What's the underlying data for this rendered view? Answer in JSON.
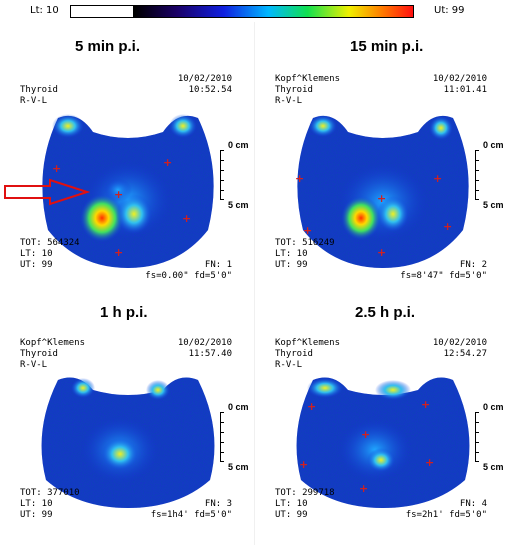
{
  "colorbar": {
    "lt_label": "Lt: 10",
    "ut_label": "Ut: 99"
  },
  "scale": {
    "top": "0 cm",
    "bottom": "5 cm"
  },
  "panels": [
    {
      "title": "5 min p.i.",
      "name": "",
      "organ": "Thyroid",
      "orient": "R-V-L",
      "date": "10/02/2010",
      "time": "10:52.54",
      "tot": "TOT: 564324",
      "lt": "LT: 10",
      "ut": "UT: 99",
      "fn": "FN: 1",
      "fs": "fs=0.00\" fd=5'0\""
    },
    {
      "title": "15 min p.i.",
      "name": "Kopf^Klemens",
      "organ": "Thyroid",
      "orient": "R-V-L",
      "date": "10/02/2010",
      "time": "11:01.41",
      "tot": "TOT: 516249",
      "lt": "LT: 10",
      "ut": "UT: 99",
      "fn": "FN: 2",
      "fs": "fs=8'47\" fd=5'0\""
    },
    {
      "title": "1 h p.i.",
      "name": "Kopf^Klemens",
      "organ": "Thyroid",
      "orient": "R-V-L",
      "date": "10/02/2010",
      "time": "11:57.40",
      "tot": "TOT: 377010",
      "lt": "LT: 10",
      "ut": "UT: 99",
      "fn": "FN: 3",
      "fs": "fs=1h4' fd=5'0\""
    },
    {
      "title": "2.5 h p.i.",
      "name": "Kopf^Klemens",
      "organ": "Thyroid",
      "orient": "R-V-L",
      "date": "10/02/2010",
      "time": "12:54.27",
      "tot": "TOT: 299718",
      "lt": "LT: 10",
      "ut": "UT: 99",
      "fn": "FN: 4",
      "fs": "fs=2h1' fd=5'0\""
    }
  ]
}
